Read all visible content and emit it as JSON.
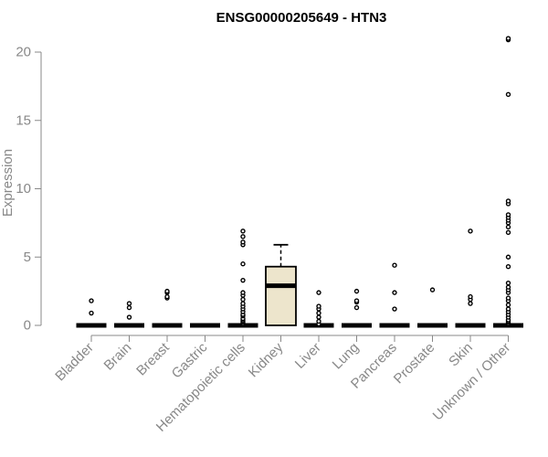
{
  "chart_data": {
    "type": "box",
    "title": "ENSG00000205649 - HTN3",
    "ylabel": "Expression",
    "xlabel": "",
    "ylim": [
      0,
      21
    ],
    "yticks": [
      0,
      5,
      10,
      15,
      20
    ],
    "grid": false,
    "colors": {
      "box_fill": "#ede5cc",
      "box_stroke": "#000000",
      "axis": "#888888"
    },
    "categories": [
      "Bladder",
      "Brain",
      "Breast",
      "Gastric",
      "Hematopoietic cells",
      "Kidney",
      "Liver",
      "Lung",
      "Pancreas",
      "Prostate",
      "Skin",
      "Unknown / Other"
    ],
    "boxes": [
      {
        "q1": 0,
        "median": 0,
        "q3": 0,
        "whisker_low": 0,
        "whisker_high": 0,
        "outliers": [
          0.9,
          1.8
        ]
      },
      {
        "q1": 0,
        "median": 0,
        "q3": 0,
        "whisker_low": 0,
        "whisker_high": 0,
        "outliers": [
          0.6,
          1.3,
          1.6
        ]
      },
      {
        "q1": 0,
        "median": 0,
        "q3": 0,
        "whisker_low": 0,
        "whisker_high": 0,
        "outliers": [
          2.0,
          2.1,
          2.4,
          2.5
        ]
      },
      {
        "q1": 0,
        "median": 0,
        "q3": 0,
        "whisker_low": 0,
        "whisker_high": 0,
        "outliers": []
      },
      {
        "q1": 0,
        "median": 0,
        "q3": 0,
        "whisker_low": 0,
        "whisker_high": 0,
        "outliers": [
          0.1,
          0.2,
          0.3,
          0.4,
          0.5,
          0.7,
          0.8,
          1.0,
          1.2,
          1.4,
          1.6,
          1.9,
          2.2,
          2.4,
          3.3,
          4.5,
          5.9,
          6.1,
          6.5,
          6.9
        ]
      },
      {
        "q1": 0,
        "median": 2.9,
        "q3": 4.3,
        "whisker_low": 0,
        "whisker_high": 5.9,
        "outliers": []
      },
      {
        "q1": 0,
        "median": 0,
        "q3": 0,
        "whisker_low": 0,
        "whisker_high": 0,
        "outliers": [
          0.1,
          0.3,
          0.6,
          0.9,
          1.2,
          1.4,
          2.4
        ]
      },
      {
        "q1": 0,
        "median": 0,
        "q3": 0,
        "whisker_low": 0,
        "whisker_high": 0,
        "outliers": [
          1.3,
          1.7,
          1.8,
          2.5
        ]
      },
      {
        "q1": 0,
        "median": 0,
        "q3": 0,
        "whisker_low": 0,
        "whisker_high": 0,
        "outliers": [
          1.2,
          2.4,
          4.4
        ]
      },
      {
        "q1": 0,
        "median": 0,
        "q3": 0,
        "whisker_low": 0,
        "whisker_high": 0,
        "outliers": [
          2.6
        ]
      },
      {
        "q1": 0,
        "median": 0,
        "q3": 0,
        "whisker_low": 0,
        "whisker_high": 0,
        "outliers": [
          1.6,
          1.9,
          2.1,
          6.9
        ]
      },
      {
        "q1": 0,
        "median": 0,
        "q3": 0,
        "whisker_low": 0,
        "whisker_high": 0,
        "outliers": [
          0.1,
          0.2,
          0.3,
          0.4,
          0.6,
          0.8,
          1.0,
          1.2,
          1.5,
          1.8,
          2.0,
          2.4,
          2.6,
          2.8,
          3.1,
          4.3,
          5.0,
          6.8,
          7.2,
          7.5,
          7.7,
          7.9,
          8.1,
          8.9,
          9.1,
          16.9,
          20.9,
          21.0
        ]
      }
    ]
  }
}
